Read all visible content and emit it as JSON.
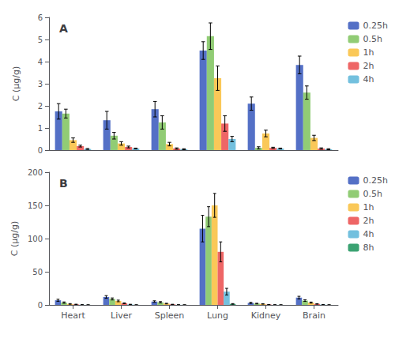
{
  "chart_data": [
    {
      "type": "bar",
      "title": "A",
      "ylabel": "C (μg/g)",
      "categories": [
        "Heart",
        "Liver",
        "Spleen",
        "Lung",
        "Kidney",
        "Brain"
      ],
      "series": [
        {
          "name": "0.25h",
          "color": "#5470c6",
          "values": [
            1.75,
            1.35,
            1.85,
            4.5,
            2.1,
            3.85
          ],
          "errors": [
            0.35,
            0.4,
            0.35,
            0.4,
            0.3,
            0.4
          ]
        },
        {
          "name": "0.5h",
          "color": "#91cc75",
          "values": [
            1.65,
            0.65,
            1.25,
            5.15,
            0.1,
            2.6
          ],
          "errors": [
            0.2,
            0.15,
            0.3,
            0.6,
            0.05,
            0.3
          ]
        },
        {
          "name": "1h",
          "color": "#fac858",
          "values": [
            0.45,
            0.3,
            0.27,
            3.25,
            0.75,
            0.55
          ],
          "errors": [
            0.1,
            0.08,
            0.08,
            0.55,
            0.15,
            0.12
          ]
        },
        {
          "name": "2h",
          "color": "#ee6666",
          "values": [
            0.18,
            0.14,
            0.07,
            1.2,
            0.1,
            0.07
          ],
          "errors": [
            0.04,
            0.04,
            0.03,
            0.35,
            0.03,
            0.03
          ]
        },
        {
          "name": "4h",
          "color": "#73c0de",
          "values": [
            0.05,
            0.07,
            0.04,
            0.5,
            0.07,
            0.04
          ],
          "errors": [
            0.02,
            0.02,
            0.02,
            0.12,
            0.02,
            0.02
          ]
        }
      ],
      "ylim": [
        0,
        6
      ],
      "yticks": [
        0,
        1,
        2,
        3,
        4,
        5,
        6
      ],
      "grid": false,
      "legend": "upper right",
      "tick_labels": "y"
    },
    {
      "type": "bar",
      "title": "B",
      "ylabel": "C (μg/g)",
      "categories": [
        "Heart",
        "Liver",
        "Spleen",
        "Lung",
        "Kidney",
        "Brain"
      ],
      "series": [
        {
          "name": "0.25h",
          "color": "#5470c6",
          "values": [
            7.0,
            12.0,
            5.0,
            115.0,
            3.0,
            11.0
          ],
          "errors": [
            1.5,
            2.0,
            1.2,
            20.0,
            0.8,
            2.0
          ]
        },
        {
          "name": "0.5h",
          "color": "#91cc75",
          "values": [
            3.5,
            9.0,
            4.0,
            133.0,
            2.0,
            6.5
          ],
          "errors": [
            1.0,
            1.5,
            1.0,
            15.0,
            0.5,
            1.2
          ]
        },
        {
          "name": "1h",
          "color": "#fac858",
          "values": [
            1.5,
            6.0,
            2.0,
            150.0,
            1.5,
            3.5
          ],
          "errors": [
            0.5,
            1.2,
            0.5,
            18.0,
            0.4,
            0.8
          ]
        },
        {
          "name": "2h",
          "color": "#ee6666",
          "values": [
            0.8,
            2.5,
            0.8,
            80.0,
            0.5,
            1.5
          ],
          "errors": [
            0.3,
            0.6,
            0.2,
            15.0,
            0.15,
            0.4
          ]
        },
        {
          "name": "4h",
          "color": "#73c0de",
          "values": [
            0.3,
            0.8,
            0.2,
            20.0,
            0.2,
            0.5
          ],
          "errors": [
            0.1,
            0.2,
            0.1,
            5.0,
            0.08,
            0.15
          ]
        },
        {
          "name": "8h",
          "color": "#3ba272",
          "values": [
            0.1,
            0.1,
            0.1,
            1.5,
            0.1,
            0.1
          ],
          "errors": [
            0.05,
            0.05,
            0.05,
            0.5,
            0.03,
            0.05
          ]
        }
      ],
      "ylim": [
        0,
        200
      ],
      "yticks": [
        0,
        50,
        100,
        150,
        200
      ],
      "grid": false,
      "legend": "upper right"
    }
  ]
}
